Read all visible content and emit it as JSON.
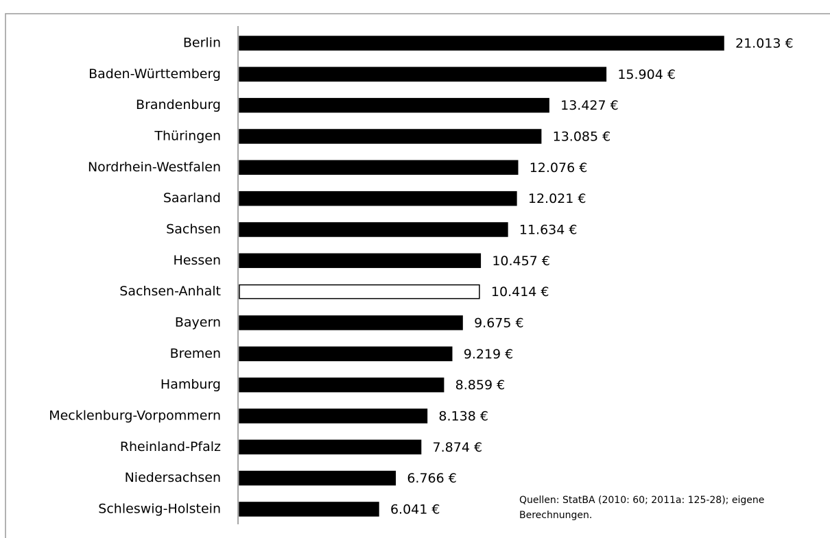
{
  "chart_data": {
    "type": "bar",
    "orientation": "horizontal",
    "categories": [
      "Berlin",
      "Baden-Württemberg",
      "Brandenburg",
      "Thüringen",
      "Nordrhein-Westfalen",
      "Saarland",
      "Sachsen",
      "Hessen",
      "Sachsen-Anhalt",
      "Bayern",
      "Bremen",
      "Hamburg",
      "Mecklenburg-Vorpommern",
      "Rheinland-Pfalz",
      "Niedersachsen",
      "Schleswig-Holstein"
    ],
    "values": [
      21013,
      15904,
      13427,
      13085,
      12076,
      12021,
      11634,
      10457,
      10414,
      9675,
      9219,
      8859,
      8138,
      7874,
      6766,
      6041
    ],
    "value_labels": [
      "21.013 €",
      "15.904 €",
      "13.427 €",
      "13.085 €",
      "12.076 €",
      "12.021 €",
      "11.634 €",
      "10.457 €",
      "10.414 €",
      "9.675 €",
      "9.219 €",
      "8.859 €",
      "8.138 €",
      "7.874 €",
      "6.766 €",
      "6.041 €"
    ],
    "colors": [
      "#000000",
      "#000000",
      "#000000",
      "#000000",
      "#000000",
      "#000000",
      "#000000",
      "#000000",
      "#ffffff",
      "#000000",
      "#000000",
      "#000000",
      "#000000",
      "#000000",
      "#000000",
      "#000000"
    ],
    "note": [
      "Quellen: StatBA (2010: 60; 2011a: 125-28); eigene",
      "Berechnungen."
    ]
  }
}
